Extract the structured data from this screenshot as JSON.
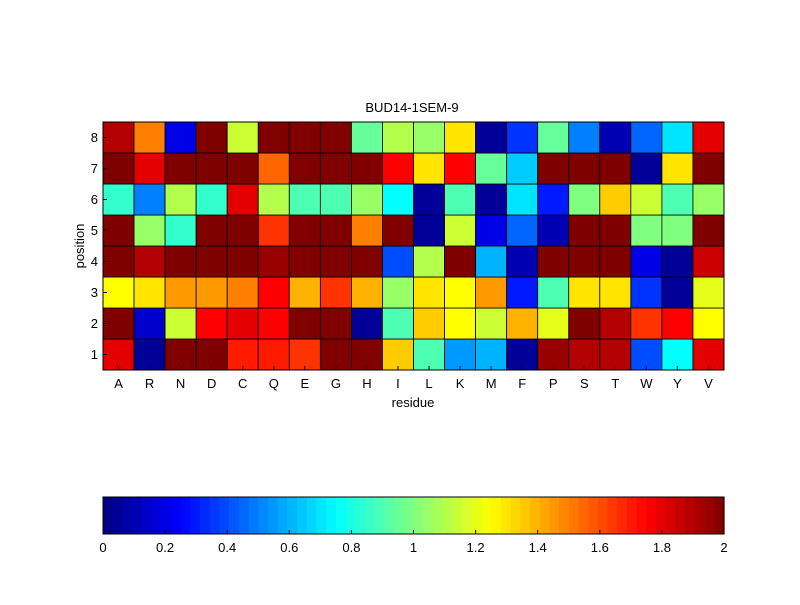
{
  "chart_data": {
    "type": "heatmap",
    "title": "BUD14-1SEM-9",
    "xlabel": "residue",
    "ylabel": "position",
    "x_categories": [
      "A",
      "R",
      "N",
      "D",
      "C",
      "Q",
      "E",
      "G",
      "H",
      "I",
      "L",
      "K",
      "M",
      "F",
      "P",
      "S",
      "T",
      "W",
      "Y",
      "V"
    ],
    "y_categories": [
      "1",
      "2",
      "3",
      "4",
      "5",
      "6",
      "7",
      "8"
    ],
    "colormap": "jet",
    "color_range": [
      0,
      2
    ],
    "colorbar": {
      "ticks": [
        0,
        0.2,
        0.4,
        0.6,
        0.8,
        1,
        1.2,
        1.4,
        1.6,
        1.8,
        2
      ],
      "tick_labels": [
        "0",
        "0.2",
        "0.4",
        "0.6",
        "0.8",
        "1",
        "1.2",
        "1.4",
        "1.6",
        "1.8",
        "2"
      ],
      "placement": "bottom"
    },
    "values": [
      [
        1.8,
        0.05,
        2.0,
        2.0,
        1.7,
        1.7,
        1.65,
        2.0,
        2.0,
        1.35,
        0.9,
        0.55,
        0.6,
        0.05,
        1.95,
        1.9,
        1.9,
        0.4,
        0.75,
        1.8
      ],
      [
        2.0,
        0.15,
        1.15,
        1.75,
        1.8,
        1.75,
        2.0,
        2.0,
        0.05,
        0.9,
        1.35,
        1.25,
        1.15,
        1.4,
        1.2,
        2.0,
        1.9,
        1.65,
        1.75,
        1.25
      ],
      [
        1.25,
        1.3,
        1.45,
        1.45,
        1.5,
        1.75,
        1.4,
        1.65,
        1.4,
        1.05,
        1.3,
        1.25,
        1.45,
        0.3,
        0.9,
        1.3,
        1.3,
        0.35,
        0.05,
        1.2
      ],
      [
        2.0,
        1.9,
        2.0,
        2.0,
        2.0,
        1.95,
        2.0,
        2.0,
        2.0,
        0.4,
        1.1,
        2.0,
        0.6,
        0.1,
        2.0,
        2.0,
        2.0,
        0.2,
        0.05,
        1.85
      ],
      [
        2.0,
        1.05,
        0.85,
        2.0,
        2.0,
        1.65,
        2.0,
        2.0,
        1.5,
        2.0,
        0.05,
        1.15,
        0.2,
        0.45,
        0.1,
        2.0,
        2.0,
        1.0,
        1.0,
        2.0
      ],
      [
        0.85,
        0.5,
        1.1,
        0.85,
        1.8,
        1.1,
        0.9,
        0.9,
        1.05,
        0.75,
        0.05,
        0.9,
        0.05,
        0.7,
        0.3,
        1.0,
        1.35,
        1.15,
        0.9,
        1.05
      ],
      [
        2.0,
        1.8,
        2.0,
        2.0,
        2.0,
        1.55,
        2.0,
        2.0,
        2.0,
        1.75,
        1.3,
        1.75,
        0.95,
        0.65,
        2.0,
        2.0,
        2.0,
        0.05,
        1.3,
        2.0
      ],
      [
        1.9,
        1.5,
        0.2,
        2.0,
        1.15,
        2.0,
        2.0,
        2.0,
        0.95,
        1.1,
        1.05,
        1.3,
        0.05,
        0.35,
        0.95,
        0.5,
        0.1,
        0.45,
        0.7,
        1.8
      ]
    ]
  }
}
